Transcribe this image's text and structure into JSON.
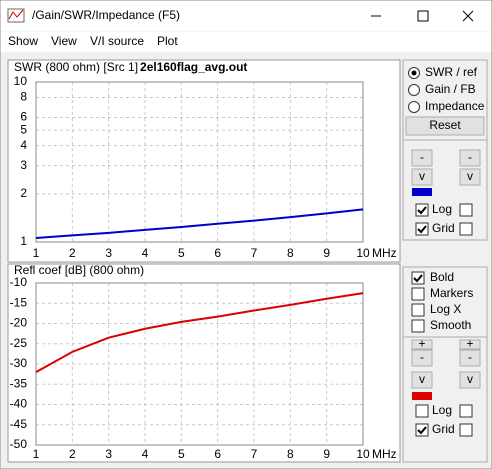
{
  "window": {
    "title": "/Gain/SWR/Impedance (F5)"
  },
  "menu": [
    "Show",
    "View",
    "V/I source",
    "Plot"
  ],
  "chart_data": [
    {
      "type": "line",
      "title": "SWR (800 ohm) [Src 1]",
      "subtitle": "2el160flag_avg.out",
      "xlabel": "MHz",
      "x": [
        1,
        2,
        3,
        4,
        5,
        6,
        7,
        8,
        9,
        10
      ],
      "series": [
        {
          "color": "#0000cc",
          "values": [
            1.06,
            1.1,
            1.14,
            1.19,
            1.24,
            1.3,
            1.36,
            1.43,
            1.51,
            1.6
          ]
        }
      ],
      "xlim": [
        1,
        10
      ],
      "xticks": [
        1,
        2,
        3,
        4,
        5,
        6,
        7,
        8,
        9,
        10
      ],
      "ylim": [
        1,
        10
      ],
      "yticks": [
        1,
        2,
        3,
        4,
        5,
        6,
        8,
        10
      ],
      "log_y": true,
      "grid": true,
      "axis_color": "#0000cc"
    },
    {
      "type": "line",
      "title": "Refl coef [dB] (800 ohm)",
      "xlabel": "MHz",
      "x": [
        1,
        2,
        3,
        4,
        5,
        6,
        7,
        8,
        9,
        10
      ],
      "series": [
        {
          "color": "#dd0000",
          "values": [
            -32,
            -27,
            -23.5,
            -21.3,
            -19.6,
            -18.3,
            -16.8,
            -15.4,
            -13.9,
            -12.5
          ]
        }
      ],
      "xlim": [
        1,
        10
      ],
      "xticks": [
        1,
        2,
        3,
        4,
        5,
        6,
        7,
        8,
        9,
        10
      ],
      "ylim": [
        -50,
        -10
      ],
      "yticks": [
        -10,
        -15,
        -20,
        -25,
        -30,
        -35,
        -40,
        -45,
        -50
      ],
      "log_y": false,
      "grid": true,
      "axis_color": "#cc0000"
    }
  ],
  "top_controls": {
    "radios": [
      {
        "label": "SWR / ref",
        "checked": true
      },
      {
        "label": "Gain / FB",
        "checked": false
      },
      {
        "label": "Impedance",
        "checked": false
      }
    ],
    "reset": "Reset",
    "buttons": [
      "-",
      "-",
      "v",
      "v"
    ],
    "checks": [
      {
        "label": "Log",
        "checked": true,
        "checked2": false
      },
      {
        "label": "Grid",
        "checked": true,
        "checked2": false
      }
    ]
  },
  "bottom_controls": {
    "options": [
      {
        "label": "Bold",
        "checked": true
      },
      {
        "label": "Markers",
        "checked": false
      },
      {
        "label": "Log X",
        "checked": false
      },
      {
        "label": "Smooth",
        "checked": false
      }
    ],
    "buttons": [
      "+",
      "+",
      "-",
      "-",
      "v",
      "v"
    ],
    "checks": [
      {
        "label": "Log",
        "checked": false,
        "checked2": false
      },
      {
        "label": "Grid",
        "checked": true,
        "checked2": false
      }
    ]
  }
}
